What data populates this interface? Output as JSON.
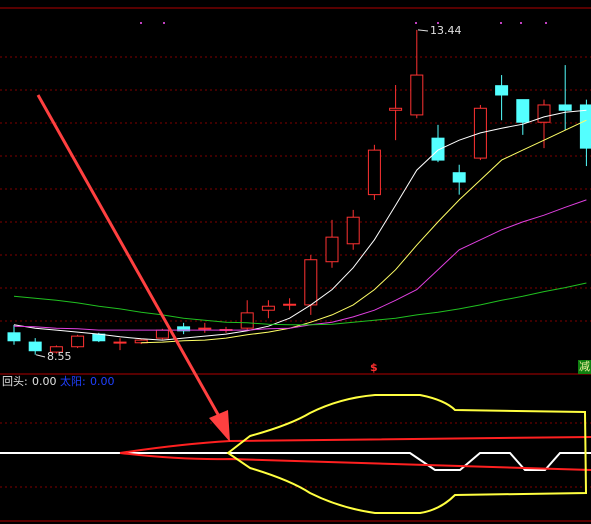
{
  "chart_data": {
    "type": "candlestick",
    "ylim": [
      8.32,
      13.89
    ],
    "up_color": "#ff3232",
    "down_color": "#54ffff",
    "open": [
      8.88,
      8.74,
      8.59,
      8.67,
      8.86,
      8.73,
      8.73,
      8.8,
      8.97,
      8.94,
      8.92,
      8.95,
      9.22,
      9.3,
      9.3,
      9.95,
      10.22,
      10.96,
      12.23,
      12.16,
      11.81,
      11.29,
      11.51,
      12.6,
      12.39,
      12.05,
      12.31,
      12.31
    ],
    "high": [
      9.0,
      8.8,
      8.69,
      8.85,
      8.88,
      8.8,
      8.79,
      8.94,
      9.03,
      9.03,
      8.97,
      9.37,
      9.37,
      9.4,
      10.05,
      10.58,
      10.73,
      11.71,
      12.61,
      13.44,
      12.01,
      11.41,
      12.31,
      12.76,
      12.39,
      12.39,
      12.91,
      12.39
    ],
    "low": [
      8.7,
      8.55,
      8.57,
      8.65,
      8.74,
      8.62,
      8.71,
      8.78,
      8.86,
      8.88,
      8.88,
      8.92,
      9.1,
      9.22,
      9.15,
      9.86,
      10.13,
      10.88,
      11.78,
      12.11,
      11.45,
      10.96,
      11.48,
      12.08,
      11.86,
      11.66,
      11.93,
      11.39
    ],
    "close": [
      8.76,
      8.61,
      8.67,
      8.83,
      8.76,
      8.74,
      8.77,
      8.92,
      8.91,
      8.95,
      8.93,
      9.18,
      9.28,
      9.31,
      9.98,
      10.32,
      10.62,
      11.63,
      12.26,
      12.76,
      11.48,
      11.15,
      12.26,
      12.46,
      12.05,
      12.31,
      12.23,
      11.66
    ],
    "series": [
      {
        "color": "#ffffff",
        "values": [
          9.0,
          8.95,
          8.92,
          8.89,
          8.86,
          8.82,
          8.79,
          8.77,
          8.8,
          8.83,
          8.86,
          8.91,
          8.98,
          9.1,
          9.3,
          9.53,
          9.86,
          10.28,
          10.8,
          11.33,
          11.63,
          11.78,
          11.89,
          11.96,
          12.02,
          12.13,
          12.2,
          12.23
        ]
      },
      {
        "color": "#ffff66",
        "values": [
          null,
          null,
          null,
          null,
          null,
          null,
          8.73,
          8.74,
          8.76,
          8.77,
          8.8,
          8.85,
          8.89,
          8.95,
          9.04,
          9.15,
          9.3,
          9.53,
          9.83,
          10.2,
          10.55,
          10.88,
          11.18,
          11.48,
          11.63,
          11.78,
          11.93,
          12.08
        ]
      },
      {
        "color": "#e040e0",
        "values": [
          8.98,
          8.97,
          8.95,
          8.94,
          8.92,
          8.92,
          8.92,
          8.92,
          8.92,
          8.92,
          8.92,
          8.92,
          8.94,
          8.95,
          9.0,
          9.04,
          9.12,
          9.22,
          9.37,
          9.53,
          9.83,
          10.13,
          10.28,
          10.43,
          10.55,
          10.65,
          10.77,
          10.88
        ]
      },
      {
        "color": "#20c020",
        "values": [
          9.43,
          9.4,
          9.37,
          9.33,
          9.28,
          9.24,
          9.19,
          9.15,
          9.1,
          9.07,
          9.04,
          9.03,
          9.01,
          9.0,
          9.0,
          9.01,
          9.04,
          9.07,
          9.1,
          9.15,
          9.19,
          9.24,
          9.3,
          9.37,
          9.43,
          9.5,
          9.56,
          9.63
        ]
      }
    ],
    "annotations": [
      "13.44",
      "8.55"
    ],
    "signal": "$",
    "corner_tag": "减",
    "indicators": [
      {
        "name": "回头:",
        "value_label": "0.00",
        "color": "#e0e0e0"
      },
      {
        "name": "太阳:",
        "value_label": "0.00",
        "color": "#2040ff"
      }
    ]
  }
}
